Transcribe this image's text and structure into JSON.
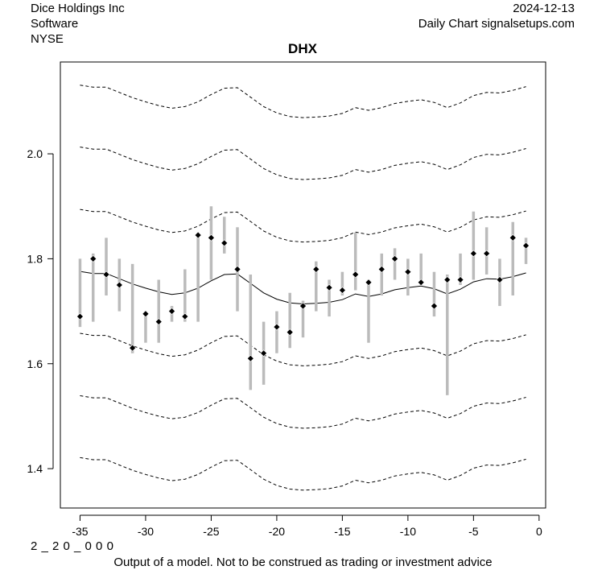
{
  "header": {
    "company": "Dice Holdings Inc",
    "sector": "Software",
    "exchange": "NYSE",
    "date": "2024-12-13",
    "source": "Daily Chart signalsetups.com"
  },
  "footer": {
    "code": "2 _ 2 0 _ 0 0 0",
    "disclaimer": "Output of a model. Not to be construed as trading or investment advice"
  },
  "chart_data": {
    "type": "scatter",
    "title": "DHX",
    "xlabel": "",
    "ylabel": "",
    "xlim": [
      -36.5,
      0.5
    ],
    "ylim": [
      1.325,
      2.175
    ],
    "x_ticks": [
      -35,
      -30,
      -25,
      -20,
      -15,
      -10,
      -5,
      0
    ],
    "x_tick_labels": [
      "-35",
      "-30",
      "-25",
      "-20",
      "-15",
      "-10",
      "-5",
      "0"
    ],
    "y_ticks": [
      1.4,
      1.6,
      1.8,
      2.0
    ],
    "y_tick_labels": [
      "1.4",
      "1.6",
      "1.8",
      "2.0"
    ],
    "grid": false,
    "colors": {
      "range_bar": "#bbbbbb",
      "marker": "#000000",
      "line": "#000000"
    },
    "points": [
      {
        "x": -35,
        "close": 1.69,
        "low": 1.67,
        "high": 1.8
      },
      {
        "x": -34,
        "close": 1.8,
        "low": 1.68,
        "high": 1.81
      },
      {
        "x": -33,
        "close": 1.77,
        "low": 1.73,
        "high": 1.84
      },
      {
        "x": -32,
        "close": 1.75,
        "low": 1.7,
        "high": 1.8
      },
      {
        "x": -31,
        "close": 1.63,
        "low": 1.62,
        "high": 1.79
      },
      {
        "x": -30,
        "close": 1.695,
        "low": 1.64,
        "high": 1.7
      },
      {
        "x": -29,
        "close": 1.68,
        "low": 1.64,
        "high": 1.76
      },
      {
        "x": -28,
        "close": 1.7,
        "low": 1.68,
        "high": 1.71
      },
      {
        "x": -27,
        "close": 1.69,
        "low": 1.68,
        "high": 1.78
      },
      {
        "x": -26,
        "close": 1.845,
        "low": 1.68,
        "high": 1.85
      },
      {
        "x": -25,
        "close": 1.84,
        "low": 1.76,
        "high": 1.9
      },
      {
        "x": -24,
        "close": 1.83,
        "low": 1.81,
        "high": 1.88
      },
      {
        "x": -23,
        "close": 1.78,
        "low": 1.7,
        "high": 1.86
      },
      {
        "x": -22,
        "close": 1.61,
        "low": 1.55,
        "high": 1.77
      },
      {
        "x": -21,
        "close": 1.62,
        "low": 1.56,
        "high": 1.68
      },
      {
        "x": -20,
        "close": 1.67,
        "low": 1.62,
        "high": 1.7
      },
      {
        "x": -19,
        "close": 1.66,
        "low": 1.63,
        "high": 1.735
      },
      {
        "x": -18,
        "close": 1.71,
        "low": 1.65,
        "high": 1.72
      },
      {
        "x": -17,
        "close": 1.78,
        "low": 1.7,
        "high": 1.795
      },
      {
        "x": -16,
        "close": 1.745,
        "low": 1.69,
        "high": 1.76
      },
      {
        "x": -15,
        "close": 1.74,
        "low": 1.73,
        "high": 1.775
      },
      {
        "x": -14,
        "close": 1.77,
        "low": 1.74,
        "high": 1.85
      },
      {
        "x": -13,
        "close": 1.755,
        "low": 1.64,
        "high": 1.76
      },
      {
        "x": -12,
        "close": 1.78,
        "low": 1.73,
        "high": 1.81
      },
      {
        "x": -11,
        "close": 1.8,
        "low": 1.76,
        "high": 1.82
      },
      {
        "x": -10,
        "close": 1.775,
        "low": 1.73,
        "high": 1.8
      },
      {
        "x": -9,
        "close": 1.755,
        "low": 1.75,
        "high": 1.81
      },
      {
        "x": -8,
        "close": 1.71,
        "low": 1.69,
        "high": 1.775
      },
      {
        "x": -7,
        "close": 1.76,
        "low": 1.54,
        "high": 1.77
      },
      {
        "x": -6,
        "close": 1.76,
        "low": 1.75,
        "high": 1.81
      },
      {
        "x": -5,
        "close": 1.81,
        "low": 1.76,
        "high": 1.89
      },
      {
        "x": -4,
        "close": 1.81,
        "low": 1.77,
        "high": 1.86
      },
      {
        "x": -3,
        "close": 1.76,
        "low": 1.71,
        "high": 1.8
      },
      {
        "x": -2,
        "close": 1.84,
        "low": 1.73,
        "high": 1.87
      },
      {
        "x": -1,
        "close": 1.825,
        "low": 1.79,
        "high": 1.84
      }
    ],
    "center_line": {
      "name": "model",
      "x": [
        -35,
        -34,
        -33,
        -32,
        -31,
        -30,
        -29,
        -28,
        -27,
        -26,
        -25,
        -24,
        -23,
        -22,
        -21,
        -20,
        -19,
        -18,
        -17,
        -16,
        -15,
        -14,
        -13,
        -12,
        -11,
        -10,
        -9,
        -8,
        -7,
        -6,
        -5,
        -4,
        -3,
        -2,
        -1
      ],
      "y": [
        1.776,
        1.772,
        1.772,
        1.762,
        1.752,
        1.744,
        1.737,
        1.732,
        1.735,
        1.744,
        1.758,
        1.77,
        1.771,
        1.753,
        1.735,
        1.723,
        1.716,
        1.714,
        1.715,
        1.717,
        1.722,
        1.733,
        1.728,
        1.733,
        1.741,
        1.745,
        1.748,
        1.743,
        1.733,
        1.742,
        1.756,
        1.762,
        1.761,
        1.766,
        1.773
      ]
    },
    "band_offsets": [
      -0.355,
      -0.237,
      -0.118,
      0.118,
      0.237,
      0.355
    ]
  }
}
